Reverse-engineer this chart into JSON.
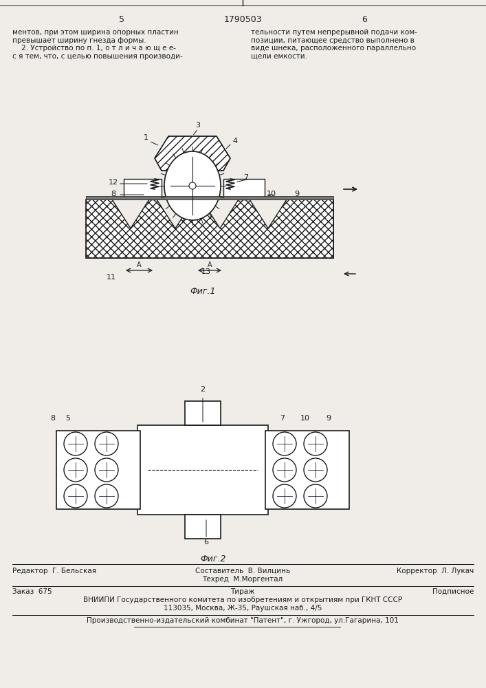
{
  "page_num_left": "5",
  "page_num_center": "1790503",
  "page_num_right": "6",
  "text_left": "ментов, при этом ширина опорных пластин\nпревышает ширину гнезда формы.\n    2. Устройство по п. 1, о т л и ч а ю щ е е-\nс я тем, что, с целью повышения производи-",
  "text_right": "тельности путем непрерывной подачи ком-\nпозиции, питающее средство выполнено в\nвиде шнека, расположенного параллельно\nщели емкости.",
  "fig1_caption": "Фиг.1",
  "fig2_caption": "Фиг.2",
  "footer_line1_left": "Редактор  Г. Бельская",
  "footer_line1_mid": "Составитель  В. Вилцинь",
  "footer_line1_right": "Корректор  Л. Лукач",
  "footer_line2_mid": "Техред  М.Моргентал",
  "footer_line3_left": "Заказ  675",
  "footer_line3_mid": "Тираж",
  "footer_line3_right": "Подписное",
  "footer_line4": "ВНИИПИ Государственного комитета по изобретениям и открытиям при ГКНТ СССР",
  "footer_line5": "113035, Москва, Ж-35, Раушская наб., 4/5",
  "footer_line6": "Производственно-издательский комбинат \"Патент\", г. Ужгород, ул.Гагарина, 101",
  "bg_color": "#f0ede8",
  "line_color": "#1a1a1a",
  "text_color": "#1a1a1a"
}
